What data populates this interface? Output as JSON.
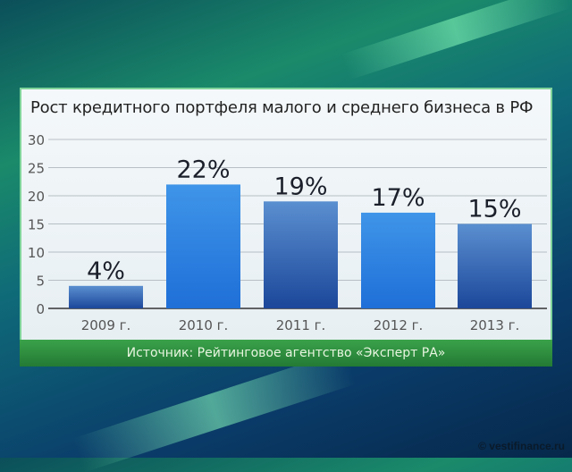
{
  "colors": {
    "bar_light": "#3a90e6",
    "bar_dark": "#1c4fa0",
    "panel": "#eef3f6",
    "source_bar": "#2e8e40"
  },
  "chart_data": {
    "type": "bar",
    "title": "Рост кредитного портфеля малого и среднего бизнеса в РФ",
    "categories": [
      "2009 г.",
      "2010 г.",
      "2011 г.",
      "2012 г.",
      "2013 г."
    ],
    "values": [
      4,
      22,
      19,
      17,
      15
    ],
    "data_labels": [
      "4%",
      "22%",
      "19%",
      "17%",
      "15%"
    ],
    "yticks": [
      "0",
      "5",
      "10",
      "15",
      "20",
      "25",
      "30"
    ],
    "ylim": [
      0,
      30
    ],
    "xlabel": "",
    "ylabel": "",
    "grid": true
  },
  "source": "Источник: Рейтинговое агентство «Эксперт РА»",
  "watermark": "© vestifinance.ru"
}
